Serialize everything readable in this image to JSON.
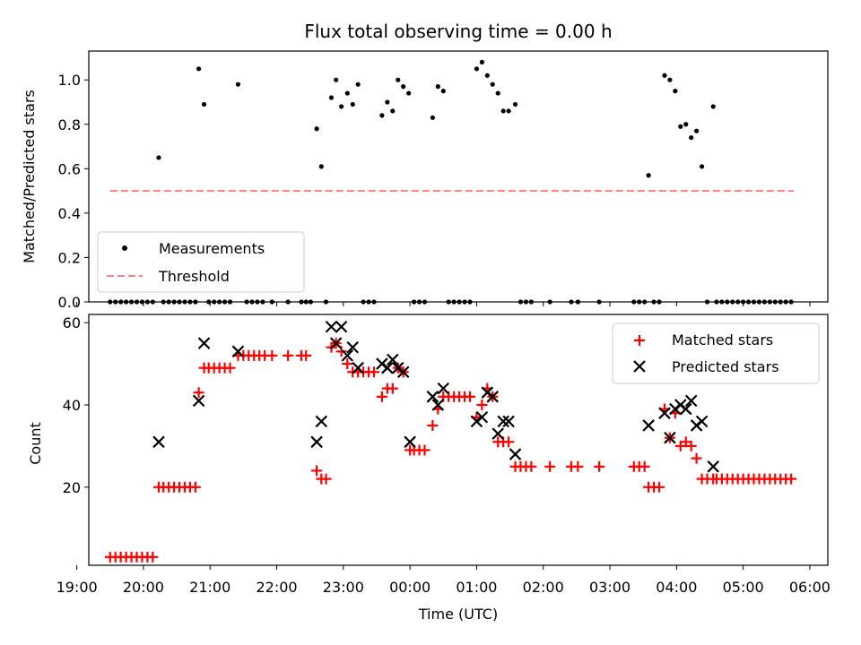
{
  "chart_data": [
    {
      "type": "scatter",
      "title": "Flux total observing time = 0.00 h",
      "xlabel": "",
      "ylabel": "Matched/Predicted stars",
      "ylim": [
        0,
        1.13
      ],
      "yticks": [
        "0.0",
        "0.2",
        "0.4",
        "0.6",
        "0.8",
        "1.0"
      ],
      "xlim": [
        19.18,
        30.27
      ],
      "legend_position": "lower-left",
      "grid": false,
      "series": [
        {
          "name": "Measurements",
          "style": "dot",
          "color": "#000000",
          "points": [
            [
              19.5,
              0
            ],
            [
              19.58,
              0
            ],
            [
              19.66,
              0
            ],
            [
              19.74,
              0
            ],
            [
              19.82,
              0
            ],
            [
              19.9,
              0
            ],
            [
              19.98,
              0
            ],
            [
              20.06,
              0
            ],
            [
              20.14,
              0
            ],
            [
              20.23,
              0.65
            ],
            [
              20.3,
              0
            ],
            [
              20.38,
              0
            ],
            [
              20.46,
              0
            ],
            [
              20.54,
              0
            ],
            [
              20.62,
              0
            ],
            [
              20.7,
              0
            ],
            [
              20.78,
              0
            ],
            [
              20.83,
              1.05
            ],
            [
              20.91,
              0.89
            ],
            [
              20.98,
              0
            ],
            [
              21.06,
              0
            ],
            [
              21.14,
              0
            ],
            [
              21.22,
              0
            ],
            [
              21.3,
              0
            ],
            [
              21.42,
              0.98
            ],
            [
              21.55,
              0
            ],
            [
              21.63,
              0
            ],
            [
              21.71,
              0
            ],
            [
              21.79,
              0
            ],
            [
              21.93,
              0
            ],
            [
              22.17,
              0
            ],
            [
              22.37,
              0
            ],
            [
              22.44,
              0
            ],
            [
              22.51,
              0
            ],
            [
              22.6,
              0.78
            ],
            [
              22.67,
              0.61
            ],
            [
              22.74,
              0
            ],
            [
              22.82,
              0.92
            ],
            [
              22.89,
              1.0
            ],
            [
              22.97,
              0.88
            ],
            [
              23.06,
              0.94
            ],
            [
              23.14,
              0.89
            ],
            [
              23.22,
              0.98
            ],
            [
              23.3,
              0
            ],
            [
              23.38,
              0
            ],
            [
              23.46,
              0
            ],
            [
              23.58,
              0.84
            ],
            [
              23.66,
              0.9
            ],
            [
              23.74,
              0.86
            ],
            [
              23.82,
              1.0
            ],
            [
              23.9,
              0.97
            ],
            [
              23.98,
              0.94
            ],
            [
              24.06,
              0
            ],
            [
              24.14,
              0
            ],
            [
              24.22,
              0
            ],
            [
              24.34,
              0.83
            ],
            [
              24.42,
              0.97
            ],
            [
              24.5,
              0.95
            ],
            [
              24.58,
              0
            ],
            [
              24.66,
              0
            ],
            [
              24.74,
              0
            ],
            [
              24.82,
              0
            ],
            [
              24.9,
              0
            ],
            [
              25.0,
              1.05
            ],
            [
              25.08,
              1.08
            ],
            [
              25.16,
              1.02
            ],
            [
              25.24,
              0.98
            ],
            [
              25.32,
              0.94
            ],
            [
              25.4,
              0.86
            ],
            [
              25.48,
              0.86
            ],
            [
              25.58,
              0.89
            ],
            [
              25.66,
              0
            ],
            [
              25.74,
              0
            ],
            [
              25.82,
              0
            ],
            [
              26.1,
              0
            ],
            [
              26.42,
              0
            ],
            [
              26.52,
              0
            ],
            [
              26.84,
              0
            ],
            [
              27.36,
              0
            ],
            [
              27.44,
              0
            ],
            [
              27.52,
              0
            ],
            [
              27.58,
              0.57
            ],
            [
              27.66,
              0
            ],
            [
              27.74,
              0
            ],
            [
              27.82,
              1.02
            ],
            [
              27.9,
              1.0
            ],
            [
              27.98,
              0.95
            ],
            [
              28.06,
              0.79
            ],
            [
              28.14,
              0.8
            ],
            [
              28.22,
              0.74
            ],
            [
              28.3,
              0.77
            ],
            [
              28.38,
              0.61
            ],
            [
              28.46,
              0
            ],
            [
              28.55,
              0.88
            ],
            [
              28.6,
              0
            ],
            [
              28.68,
              0
            ],
            [
              28.76,
              0
            ],
            [
              28.84,
              0
            ],
            [
              28.92,
              0
            ],
            [
              29.0,
              0
            ],
            [
              29.08,
              0
            ],
            [
              29.16,
              0
            ],
            [
              29.24,
              0
            ],
            [
              29.32,
              0
            ],
            [
              29.4,
              0
            ],
            [
              29.48,
              0
            ],
            [
              29.56,
              0
            ],
            [
              29.64,
              0
            ],
            [
              29.72,
              0
            ]
          ]
        },
        {
          "name": "Threshold",
          "style": "dashed-line",
          "color": "#ff7f7f",
          "points": [
            [
              19.5,
              0.5
            ],
            [
              29.76,
              0.5
            ]
          ]
        }
      ]
    },
    {
      "type": "scatter",
      "title": "",
      "xlabel": "Time (UTC)",
      "ylabel": "Count",
      "ylim": [
        1,
        62
      ],
      "yticks": [
        "20",
        "40",
        "60"
      ],
      "xlim": [
        19.18,
        30.27
      ],
      "xticks": [
        "19:00",
        "20:00",
        "21:00",
        "22:00",
        "23:00",
        "00:00",
        "01:00",
        "02:00",
        "03:00",
        "04:00",
        "05:00",
        "06:00"
      ],
      "legend_position": "top-right",
      "grid": false,
      "series": [
        {
          "name": "Matched stars",
          "style": "plus",
          "color": "#ff0000",
          "points": [
            [
              19.5,
              3
            ],
            [
              19.58,
              3
            ],
            [
              19.66,
              3
            ],
            [
              19.74,
              3
            ],
            [
              19.82,
              3
            ],
            [
              19.9,
              3
            ],
            [
              19.98,
              3
            ],
            [
              20.06,
              3
            ],
            [
              20.14,
              3
            ],
            [
              20.23,
              20
            ],
            [
              20.3,
              20
            ],
            [
              20.38,
              20
            ],
            [
              20.46,
              20
            ],
            [
              20.54,
              20
            ],
            [
              20.62,
              20
            ],
            [
              20.7,
              20
            ],
            [
              20.78,
              20
            ],
            [
              20.83,
              43
            ],
            [
              20.91,
              49
            ],
            [
              20.98,
              49
            ],
            [
              21.06,
              49
            ],
            [
              21.14,
              49
            ],
            [
              21.22,
              49
            ],
            [
              21.3,
              49
            ],
            [
              21.42,
              52
            ],
            [
              21.5,
              52
            ],
            [
              21.58,
              52
            ],
            [
              21.66,
              52
            ],
            [
              21.74,
              52
            ],
            [
              21.82,
              52
            ],
            [
              21.93,
              52
            ],
            [
              22.17,
              52
            ],
            [
              22.37,
              52
            ],
            [
              22.44,
              52
            ],
            [
              22.6,
              24
            ],
            [
              22.67,
              22
            ],
            [
              22.74,
              22
            ],
            [
              22.82,
              54
            ],
            [
              22.89,
              55
            ],
            [
              22.97,
              53
            ],
            [
              23.06,
              50
            ],
            [
              23.14,
              48
            ],
            [
              23.22,
              48
            ],
            [
              23.3,
              48
            ],
            [
              23.38,
              48
            ],
            [
              23.46,
              48
            ],
            [
              23.58,
              42
            ],
            [
              23.66,
              44
            ],
            [
              23.74,
              44
            ],
            [
              23.82,
              49
            ],
            [
              23.9,
              48
            ],
            [
              24.0,
              29
            ],
            [
              24.06,
              29
            ],
            [
              24.14,
              29
            ],
            [
              24.22,
              29
            ],
            [
              24.34,
              35
            ],
            [
              24.42,
              39
            ],
            [
              24.5,
              42
            ],
            [
              24.58,
              42
            ],
            [
              24.66,
              42
            ],
            [
              24.74,
              42
            ],
            [
              24.82,
              42
            ],
            [
              24.9,
              42
            ],
            [
              25.0,
              37
            ],
            [
              25.08,
              40
            ],
            [
              25.16,
              44
            ],
            [
              25.24,
              42
            ],
            [
              25.32,
              31
            ],
            [
              25.4,
              31
            ],
            [
              25.48,
              31
            ],
            [
              25.58,
              25
            ],
            [
              25.66,
              25
            ],
            [
              25.74,
              25
            ],
            [
              25.82,
              25
            ],
            [
              26.1,
              25
            ],
            [
              26.42,
              25
            ],
            [
              26.52,
              25
            ],
            [
              26.84,
              25
            ],
            [
              27.36,
              25
            ],
            [
              27.44,
              25
            ],
            [
              27.52,
              25
            ],
            [
              27.58,
              20
            ],
            [
              27.66,
              20
            ],
            [
              27.74,
              20
            ],
            [
              27.82,
              39
            ],
            [
              27.9,
              32
            ],
            [
              27.98,
              38
            ],
            [
              28.06,
              30
            ],
            [
              28.14,
              31
            ],
            [
              28.22,
              30
            ],
            [
              28.3,
              27
            ],
            [
              28.38,
              22
            ],
            [
              28.46,
              22
            ],
            [
              28.55,
              22
            ],
            [
              28.6,
              22
            ],
            [
              28.68,
              22
            ],
            [
              28.76,
              22
            ],
            [
              28.84,
              22
            ],
            [
              28.92,
              22
            ],
            [
              29.0,
              22
            ],
            [
              29.08,
              22
            ],
            [
              29.16,
              22
            ],
            [
              29.24,
              22
            ],
            [
              29.32,
              22
            ],
            [
              29.4,
              22
            ],
            [
              29.48,
              22
            ],
            [
              29.56,
              22
            ],
            [
              29.64,
              22
            ],
            [
              29.72,
              22
            ]
          ]
        },
        {
          "name": "Predicted stars",
          "style": "x",
          "color": "#000000",
          "points": [
            [
              20.23,
              31
            ],
            [
              20.83,
              41
            ],
            [
              20.91,
              55
            ],
            [
              21.42,
              53
            ],
            [
              22.6,
              31
            ],
            [
              22.67,
              36
            ],
            [
              22.82,
              59
            ],
            [
              22.89,
              55
            ],
            [
              22.97,
              59
            ],
            [
              23.06,
              52
            ],
            [
              23.14,
              54
            ],
            [
              23.22,
              49
            ],
            [
              23.58,
              50
            ],
            [
              23.66,
              49
            ],
            [
              23.74,
              51
            ],
            [
              23.82,
              49
            ],
            [
              23.9,
              48
            ],
            [
              24.0,
              31
            ],
            [
              24.34,
              42
            ],
            [
              24.42,
              40
            ],
            [
              24.5,
              44
            ],
            [
              25.0,
              36
            ],
            [
              25.08,
              37
            ],
            [
              25.16,
              43
            ],
            [
              25.24,
              42
            ],
            [
              25.32,
              33
            ],
            [
              25.4,
              36
            ],
            [
              25.48,
              36
            ],
            [
              25.58,
              28
            ],
            [
              27.58,
              35
            ],
            [
              27.82,
              38
            ],
            [
              27.9,
              32
            ],
            [
              27.98,
              39
            ],
            [
              28.06,
              40
            ],
            [
              28.14,
              39
            ],
            [
              28.22,
              41
            ],
            [
              28.3,
              35
            ],
            [
              28.38,
              36
            ],
            [
              28.55,
              25
            ]
          ]
        }
      ]
    }
  ]
}
